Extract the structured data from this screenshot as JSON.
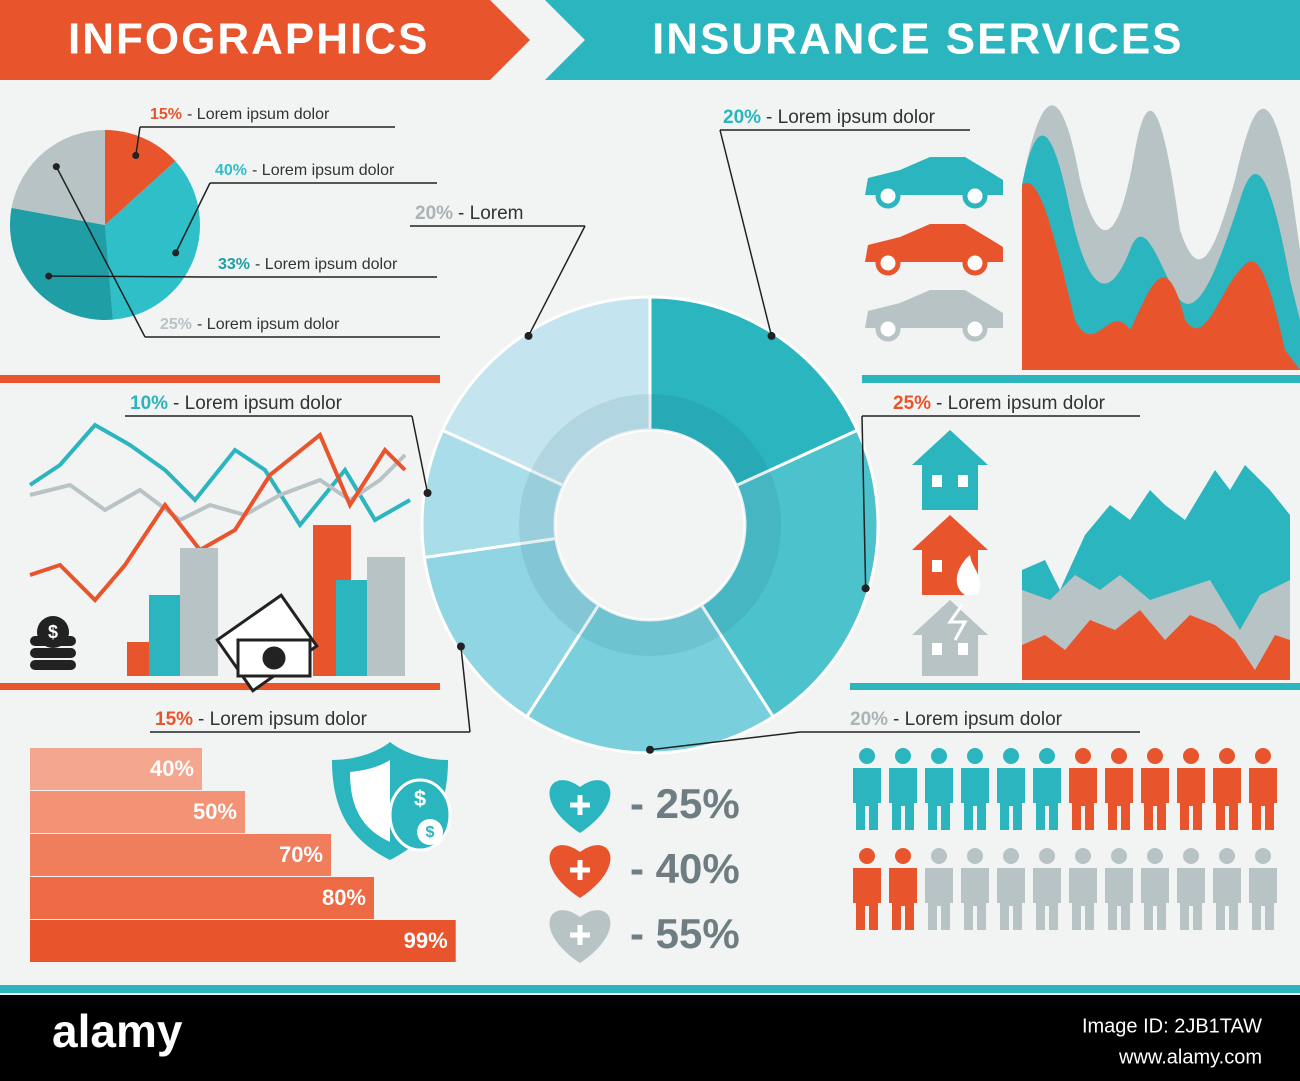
{
  "header": {
    "left_title": "INFOGRAPHICS",
    "right_title": "INSURANCE SERVICES"
  },
  "pie": {
    "type": "pie",
    "slices": [
      {
        "value": 15,
        "label": "15%",
        "text": "- Lorem ipsum dolor",
        "color": "#e8542c"
      },
      {
        "value": 40,
        "label": "40%",
        "text": "- Lorem ipsum dolor",
        "color": "#2ebfc9"
      },
      {
        "value": 33,
        "label": "33%",
        "text": "- Lorem ipsum dolor",
        "color": "#1f9ea6"
      },
      {
        "value": 25,
        "label": "25%",
        "text": "- Lorem ipsum dolor",
        "color": "#b8c3c5"
      }
    ]
  },
  "donut": {
    "type": "donut",
    "segments": [
      {
        "value": 20,
        "label": "20%",
        "text": "- Lorem ipsum dolor",
        "color": "#2bb5bf",
        "label_color": "#2bb5bf"
      },
      {
        "value": 25,
        "label": "25%",
        "text": "- Lorem ipsum dolor",
        "color": "#4cc2cd",
        "label_color": "#e8542c"
      },
      {
        "value": 20,
        "label": "20%",
        "text": "- Lorem ipsum dolor",
        "color": "#79d0dc",
        "label_color": "#a9b4b6"
      },
      {
        "value": 15,
        "label": "15%",
        "text": "- Lorem ipsum dolor",
        "color": "#90d5e3",
        "label_color": "#e8542c"
      },
      {
        "value": 10,
        "label": "10%",
        "text": "- Lorem ipsum dolor",
        "color": "#a9dde9",
        "label_color": "#2bb5bf"
      },
      {
        "value": 20,
        "label": "20%",
        "text": "- Lorem",
        "color": "#c4e5ef",
        "label_color": "#a9b4b6"
      }
    ]
  },
  "steps": {
    "type": "bar",
    "bars": [
      {
        "value": 40,
        "label": "40%",
        "color": "#f5a68e"
      },
      {
        "value": 50,
        "label": "50%",
        "color": "#f39275"
      },
      {
        "value": 70,
        "label": "70%",
        "color": "#f07d5b"
      },
      {
        "value": 80,
        "label": "80%",
        "color": "#ed6a44"
      },
      {
        "value": 99,
        "label": "99%",
        "color": "#e8542c"
      }
    ]
  },
  "hearts": [
    {
      "text": "- 25%",
      "color": "#2bb5bf"
    },
    {
      "text": "- 40%",
      "color": "#e8542c"
    },
    {
      "text": "- 55%",
      "color": "#b8c3c5"
    }
  ],
  "footer": {
    "brand": "alamy",
    "image_id": "Image ID: 2JB1TAW",
    "url": "www.alamy.com"
  }
}
